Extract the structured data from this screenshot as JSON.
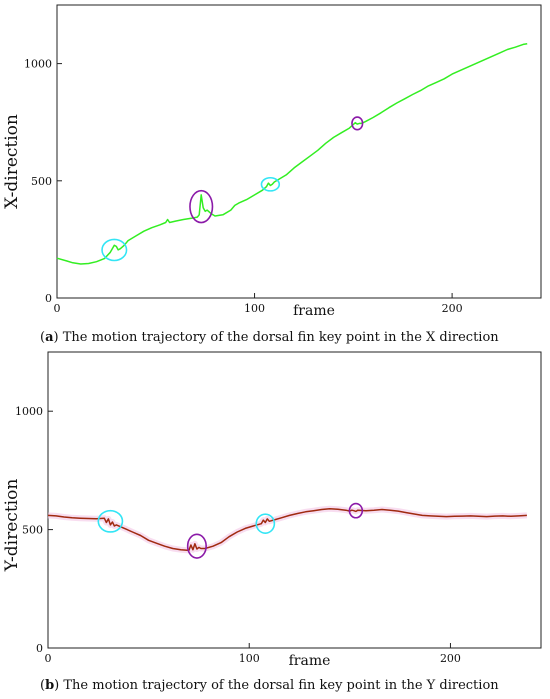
{
  "chart_data": [
    {
      "type": "line",
      "panel_tag": "a",
      "caption": "The motion trajectory of the dorsal fin key point in the X direction",
      "xlabel": "frame",
      "ylabel": "X-direction",
      "xlim": [
        0,
        245
      ],
      "ylim": [
        0,
        1250
      ],
      "xticks": [
        "0",
        "100",
        "200"
      ],
      "yticks": [
        "0",
        "500",
        "1000"
      ],
      "grid": false,
      "color": "#33ee22",
      "series": [
        {
          "x": [
            0,
            5,
            8,
            12,
            16,
            20,
            24,
            27,
            28,
            29,
            30,
            31,
            32,
            34,
            36,
            40,
            44,
            48,
            52,
            55,
            56,
            57,
            60,
            64,
            68,
            71,
            72,
            73,
            74,
            75,
            76,
            78,
            80,
            84,
            88,
            90,
            92,
            96,
            100,
            104,
            106,
            107,
            108,
            109,
            110,
            112,
            116,
            120,
            124,
            128,
            132,
            136,
            140,
            144,
            148,
            150,
            151,
            152,
            153,
            154,
            156,
            160,
            164,
            168,
            172,
            176,
            180,
            184,
            188,
            192,
            196,
            200,
            204,
            208,
            212,
            216,
            220,
            224,
            228,
            232,
            236,
            238
          ],
          "y": [
            170,
            158,
            150,
            145,
            147,
            155,
            168,
            195,
            210,
            225,
            220,
            205,
            210,
            225,
            245,
            265,
            285,
            300,
            312,
            322,
            335,
            322,
            328,
            335,
            340,
            345,
            355,
            440,
            385,
            370,
            375,
            360,
            350,
            355,
            375,
            395,
            405,
            420,
            440,
            460,
            475,
            490,
            480,
            485,
            495,
            505,
            525,
            555,
            580,
            605,
            630,
            660,
            685,
            705,
            725,
            740,
            748,
            742,
            745,
            745,
            752,
            770,
            790,
            812,
            832,
            850,
            868,
            885,
            905,
            920,
            935,
            955,
            970,
            985,
            1000,
            1015,
            1030,
            1045,
            1060,
            1070,
            1082,
            1085
          ]
        }
      ],
      "annotations": [
        {
          "shape": "circle",
          "color": "#33e5f5",
          "x": 29,
          "y": 205,
          "rx": 6.2,
          "ry": 45
        },
        {
          "shape": "ellipse",
          "color": "#8b1aa8",
          "x": 73,
          "y": 390,
          "rx": 5.7,
          "ry": 68
        },
        {
          "shape": "circle",
          "color": "#33e5f5",
          "x": 108,
          "y": 485,
          "rx": 4.5,
          "ry": 28
        },
        {
          "shape": "circle",
          "color": "#8b1aa8",
          "x": 152,
          "y": 745,
          "rx": 2.7,
          "ry": 27
        }
      ]
    },
    {
      "type": "line",
      "panel_tag": "b",
      "caption": "The motion trajectory of the dorsal fin key point in the Y direction",
      "xlabel": "frame",
      "ylabel": "Y-direction",
      "xlim": [
        0,
        245
      ],
      "ylim": [
        0,
        1250
      ],
      "xticks": [
        "0",
        "100",
        "200"
      ],
      "yticks": [
        "0",
        "500",
        "1000"
      ],
      "grid": false,
      "color": "#a02a10",
      "series": [
        {
          "x": [
            0,
            4,
            8,
            12,
            16,
            20,
            24,
            28,
            29,
            30,
            31,
            32,
            33,
            34,
            38,
            42,
            46,
            50,
            54,
            58,
            62,
            66,
            70,
            71,
            72,
            73,
            74,
            75,
            76,
            78,
            82,
            86,
            90,
            94,
            98,
            102,
            106,
            107,
            108,
            109,
            110,
            112,
            116,
            120,
            124,
            128,
            132,
            136,
            140,
            144,
            148,
            150,
            151,
            152,
            153,
            154,
            158,
            162,
            166,
            170,
            174,
            178,
            182,
            186,
            190,
            194,
            198,
            202,
            206,
            210,
            214,
            218,
            222,
            226,
            230,
            234,
            238
          ],
          "y": [
            560,
            558,
            553,
            550,
            548,
            547,
            546,
            548,
            530,
            545,
            520,
            532,
            515,
            520,
            505,
            490,
            475,
            455,
            442,
            430,
            420,
            415,
            412,
            435,
            415,
            440,
            418,
            425,
            420,
            420,
            430,
            445,
            470,
            490,
            505,
            515,
            525,
            540,
            530,
            545,
            535,
            540,
            550,
            560,
            568,
            575,
            580,
            585,
            588,
            586,
            582,
            578,
            582,
            580,
            577,
            582,
            580,
            582,
            585,
            582,
            578,
            572,
            566,
            560,
            558,
            556,
            555,
            556,
            557,
            558,
            556,
            555,
            557,
            558,
            556,
            558,
            560
          ]
        }
      ],
      "annotations": [
        {
          "shape": "circle",
          "color": "#33e5f5",
          "x": 31,
          "y": 535,
          "rx": 6,
          "ry": 45
        },
        {
          "shape": "ellipse",
          "color": "#8b1aa8",
          "x": 74,
          "y": 430,
          "rx": 4.6,
          "ry": 50
        },
        {
          "shape": "circle",
          "color": "#33e5f5",
          "x": 108,
          "y": 525,
          "rx": 4.5,
          "ry": 40
        },
        {
          "shape": "circle",
          "color": "#8b1aa8",
          "x": 153,
          "y": 580,
          "rx": 3.2,
          "ry": 30
        }
      ]
    }
  ]
}
